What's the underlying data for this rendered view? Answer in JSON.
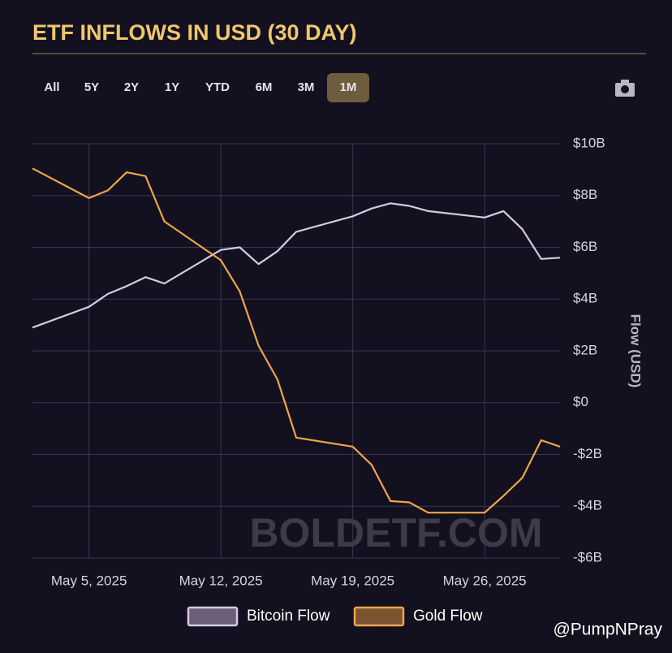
{
  "chart_data": {
    "type": "line",
    "title": "ETF INFLOWS IN USD (30 DAY)",
    "range_buttons": [
      "All",
      "5Y",
      "2Y",
      "1Y",
      "YTD",
      "6M",
      "3M",
      "1M"
    ],
    "active_range": "1M",
    "y_label": "Flow (USD)",
    "watermark": "BOLDETF.COM",
    "attribution": "@PumpNPray",
    "x": [
      "2025-05-02",
      "2025-05-05",
      "2025-05-06",
      "2025-05-07",
      "2025-05-08",
      "2025-05-09",
      "2025-05-12",
      "2025-05-13",
      "2025-05-14",
      "2025-05-15",
      "2025-05-16",
      "2025-05-19",
      "2025-05-20",
      "2025-05-21",
      "2025-05-22",
      "2025-05-23",
      "2025-05-26",
      "2025-05-27",
      "2025-05-28",
      "2025-05-29",
      "2025-05-30"
    ],
    "series": [
      {
        "name": "Bitcoin Flow",
        "color": "#d9c8df",
        "values": [
          2.9,
          3.7,
          4.2,
          4.5,
          4.85,
          4.6,
          5.9,
          6.0,
          5.35,
          5.85,
          6.6,
          7.2,
          7.5,
          7.7,
          7.6,
          7.4,
          7.15,
          7.4,
          6.7,
          5.55,
          5.6
        ]
      },
      {
        "name": "Gold Flow",
        "color": "#f0a44a",
        "values": [
          9.05,
          7.9,
          8.2,
          8.9,
          8.75,
          7.0,
          5.5,
          4.3,
          2.2,
          0.9,
          -1.35,
          -1.7,
          -2.4,
          -3.8,
          -3.85,
          -4.25,
          -4.25,
          -3.6,
          -2.9,
          -1.45,
          -1.7
        ]
      }
    ],
    "xlim": [
      "2025-05-02",
      "2025-05-30"
    ],
    "xticks": [
      {
        "value": "2025-05-05",
        "label": "May 5, 2025"
      },
      {
        "value": "2025-05-12",
        "label": "May 12, 2025"
      },
      {
        "value": "2025-05-19",
        "label": "May 19, 2025"
      },
      {
        "value": "2025-05-26",
        "label": "May 26, 2025"
      }
    ],
    "ylim": [
      -6,
      10
    ],
    "yticks": [
      {
        "value": -6,
        "label": "-$6B"
      },
      {
        "value": -4,
        "label": "-$4B"
      },
      {
        "value": -2,
        "label": "-$2B"
      },
      {
        "value": 0,
        "label": "$0"
      },
      {
        "value": 2,
        "label": "$2B"
      },
      {
        "value": 4,
        "label": "$4B"
      },
      {
        "value": 6,
        "label": "$6B"
      },
      {
        "value": 8,
        "label": "$8B"
      },
      {
        "value": 10,
        "label": "$10B"
      }
    ],
    "grid": true
  }
}
